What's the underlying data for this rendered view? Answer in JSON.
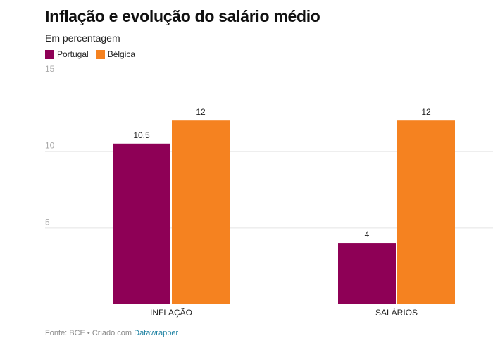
{
  "chart_data": {
    "type": "bar",
    "title": "Inflação e evolução do salário médio",
    "subtitle": "Em percentagem",
    "categories": [
      "INFLAÇÃO",
      "SALÁRIOS"
    ],
    "series": [
      {
        "name": "Portugal",
        "color": "#8e0056",
        "values": [
          10.5,
          4
        ],
        "labels": [
          "10,5",
          "4"
        ]
      },
      {
        "name": "Bélgica",
        "color": "#f58220",
        "values": [
          12,
          12
        ],
        "labels": [
          "12",
          "12"
        ]
      }
    ],
    "ylim": [
      0,
      15
    ],
    "yticks": [
      5,
      10,
      15
    ],
    "grid": true,
    "legend": "top-left"
  },
  "footer": {
    "source": "Fonte: BCE • Criado com ",
    "link": "Datawrapper"
  }
}
